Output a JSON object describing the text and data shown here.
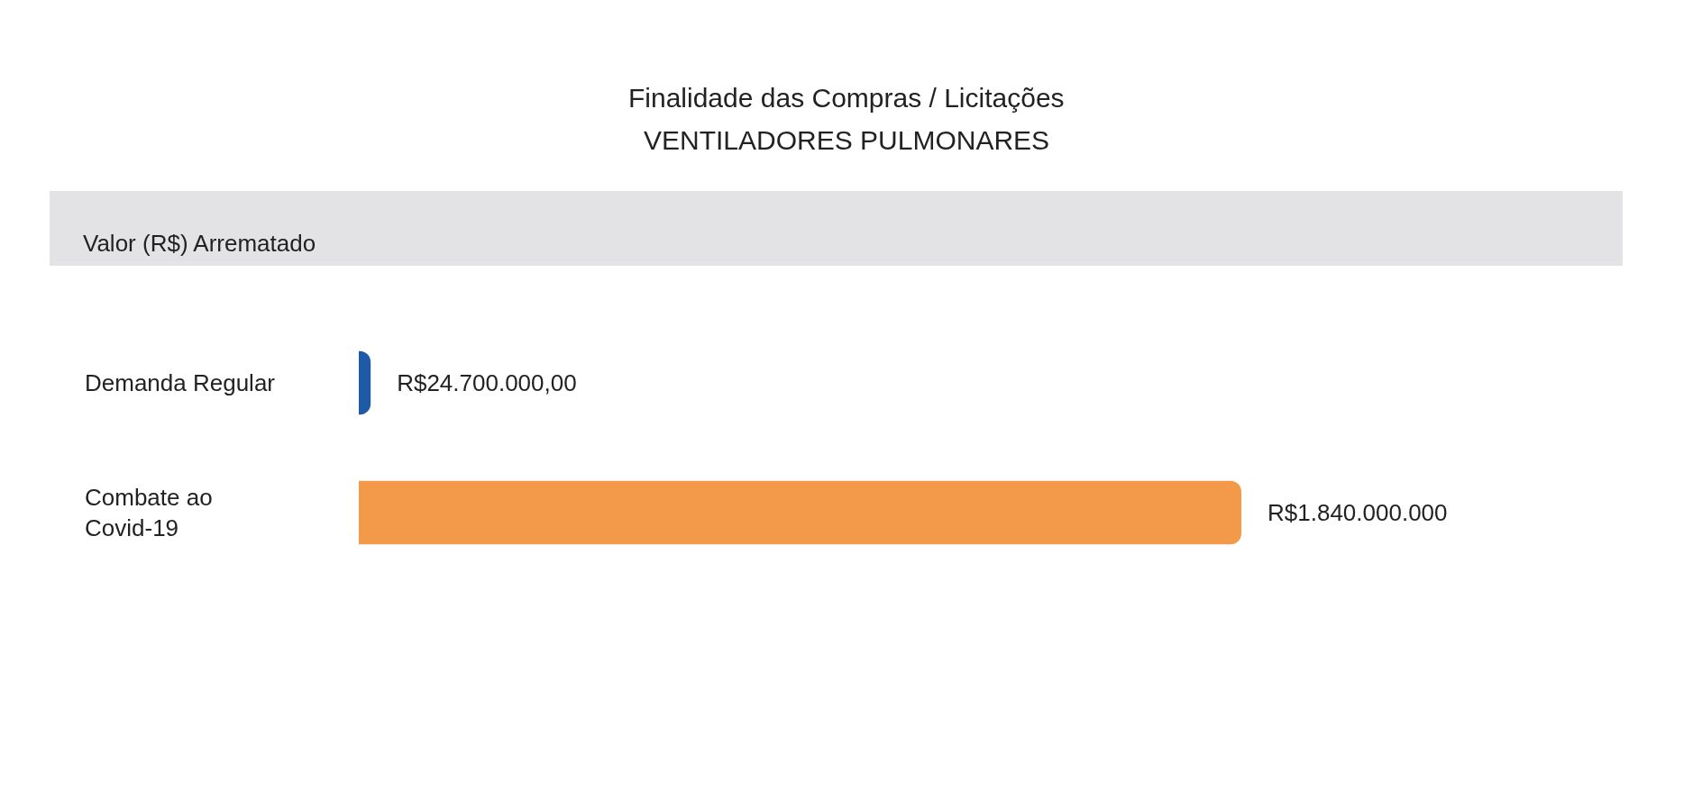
{
  "chart_data": {
    "type": "bar",
    "orientation": "horizontal",
    "title": "Finalidade das Compras / Licitações",
    "subtitle": "VENTILADORES PULMONARES",
    "xlabel": "Valor (R$) Arrematado",
    "categories": [
      "Demanda Regular",
      "Combate ao Covid-19"
    ],
    "values": [
      24700000,
      1840000000
    ],
    "colors": [
      "#1f5aa6",
      "#f2994a"
    ],
    "value_labels": [
      "R$24.700.000,00",
      "R$1.840.000.000"
    ],
    "tick_labels": "y"
  }
}
